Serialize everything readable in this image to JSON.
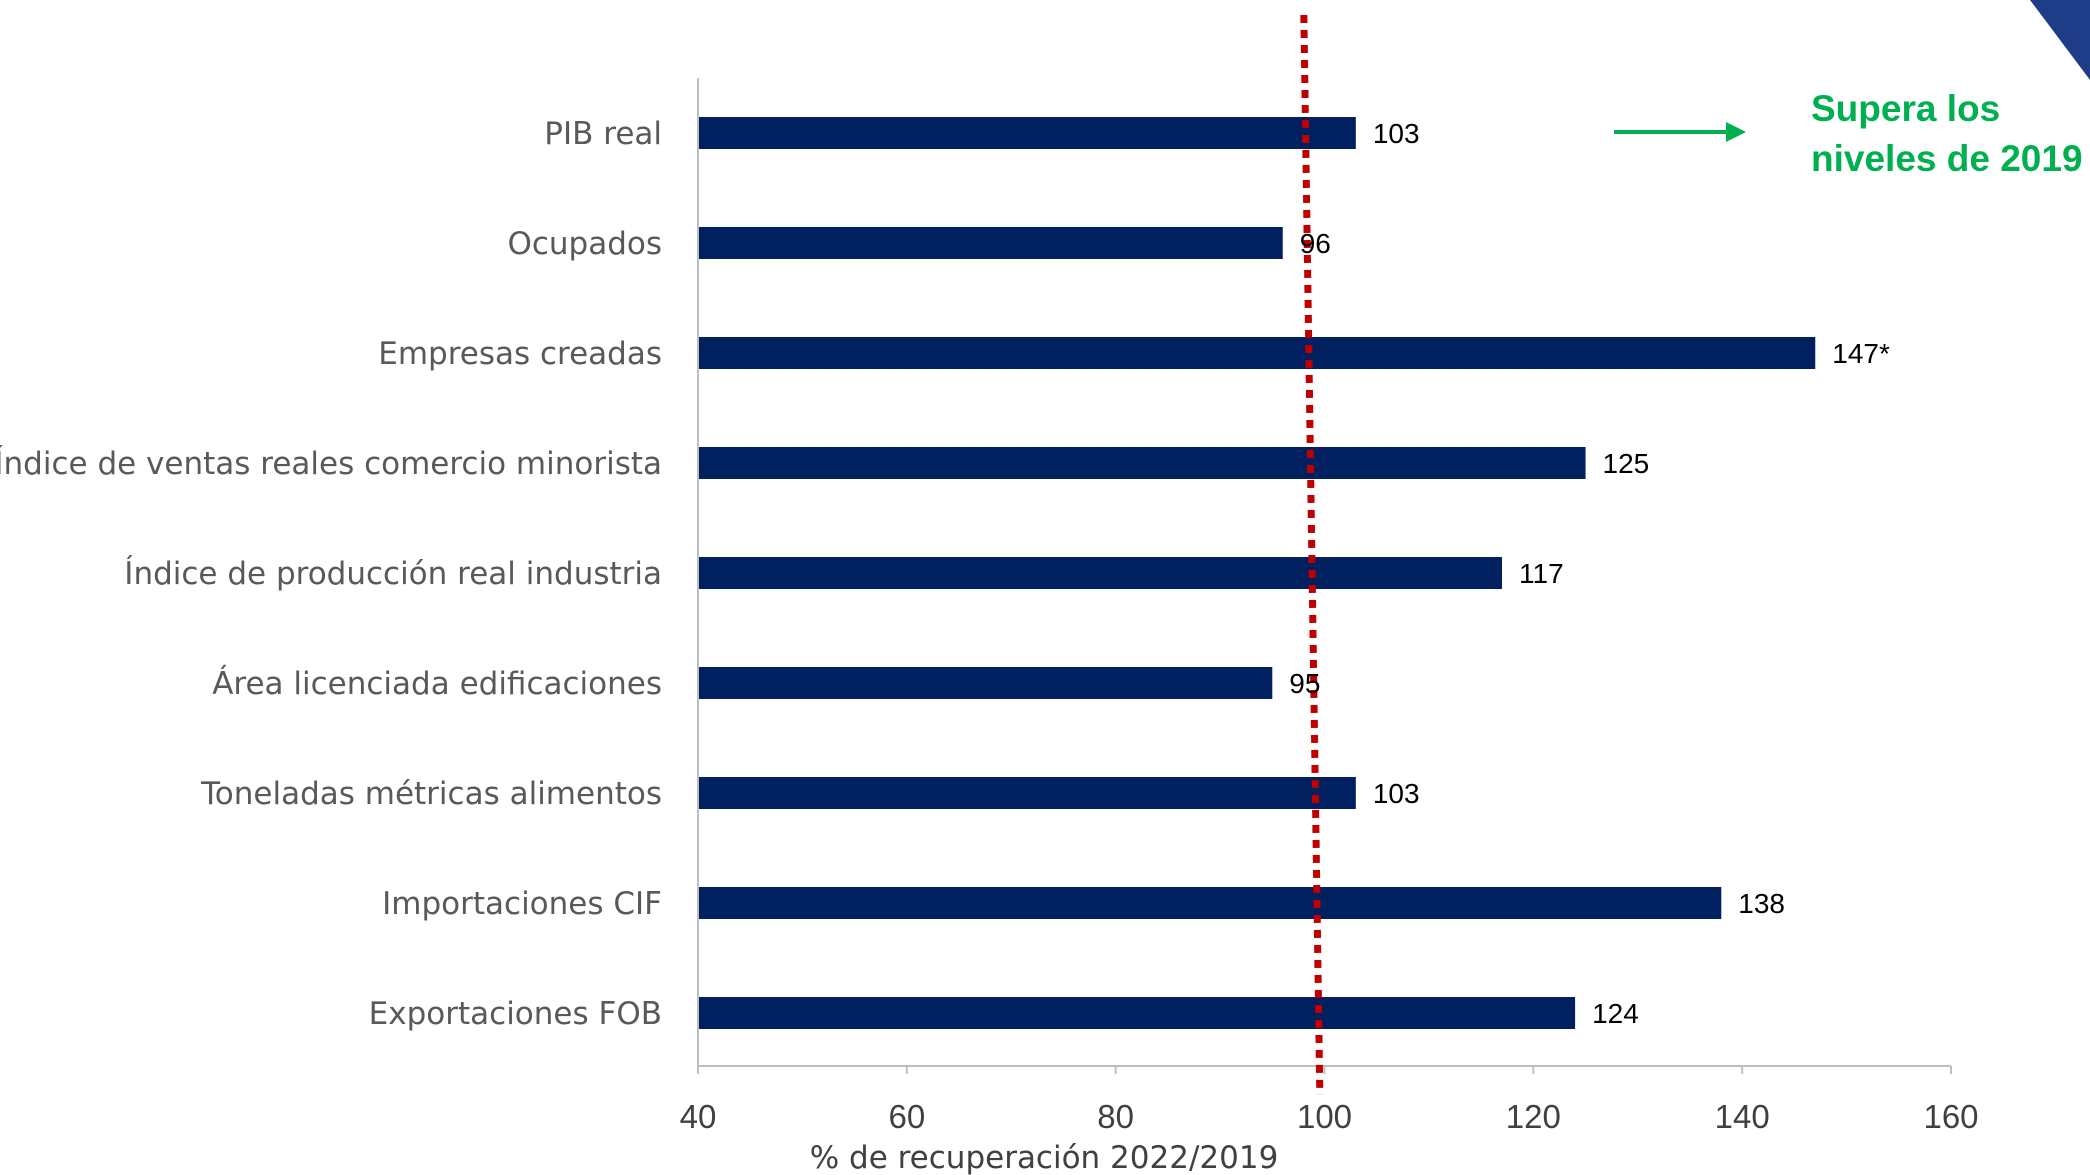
{
  "chart_data": {
    "type": "bar",
    "orientation": "horizontal",
    "categories": [
      "PIB real",
      "Ocupados",
      "Empresas creadas",
      "Índice de ventas reales comercio minorista",
      "Índice de producción real industria",
      "Área licenciada edificaciones",
      "Toneladas métricas alimentos",
      "Importaciones CIF",
      "Exportaciones FOB"
    ],
    "values": [
      103,
      96,
      147,
      125,
      117,
      95,
      103,
      138,
      124
    ],
    "value_labels": [
      "103",
      "96",
      "147*",
      "125",
      "117",
      "95",
      "103",
      "138",
      "124"
    ],
    "xlabel": "% de recuperación 2022/2019",
    "ylabel": "",
    "xlim": [
      40,
      160
    ],
    "xticks": [
      40,
      60,
      80,
      100,
      120,
      140,
      160
    ],
    "reference_line": {
      "value": 98.5,
      "style": "dotted",
      "color": "#C00000"
    },
    "grid": false,
    "bar_color": "#002060",
    "annotation": {
      "lines": [
        "Supera los",
        "niveles de 2019"
      ],
      "color": "#00B050",
      "arrow": "right"
    },
    "corner_accent_color": "#1F3C88"
  }
}
